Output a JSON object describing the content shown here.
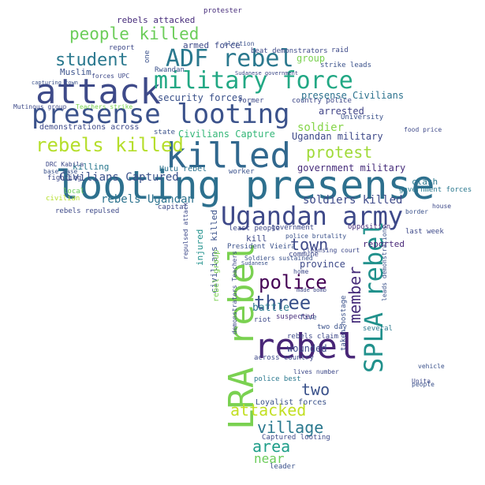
{
  "wordcloud": {
    "words": [
      {
        "text": "looting presense",
        "color": "#2d708e"
      },
      {
        "text": "presense looting",
        "color": "#3b528b"
      },
      {
        "text": "attack",
        "color": "#3e4a89"
      },
      {
        "text": "Ugandan army",
        "color": "#3e4989"
      },
      {
        "text": "killed",
        "color": "#31688e"
      },
      {
        "text": "military force",
        "color": "#22a884"
      },
      {
        "text": "ADF rebel",
        "color": "#2a788e"
      },
      {
        "text": "rebel",
        "color": "#482677"
      },
      {
        "text": "LRA rebel",
        "color": "#7ad151"
      },
      {
        "text": "SPLA rebel",
        "color": "#21918c"
      },
      {
        "text": "rebels killed",
        "color": "#b5de2b"
      },
      {
        "text": "people killed",
        "color": "#6ccd5a"
      },
      {
        "text": "student",
        "color": "#2a788e"
      },
      {
        "text": "police",
        "color": "#440154"
      },
      {
        "text": "three",
        "color": "#3b528b"
      },
      {
        "text": "town",
        "color": "#3e4a89"
      },
      {
        "text": "member",
        "color": "#472d7b"
      },
      {
        "text": "protest",
        "color": "#a0da39"
      },
      {
        "text": "attacked",
        "color": "#c2df23"
      },
      {
        "text": "village",
        "color": "#2a788e"
      },
      {
        "text": "area",
        "color": "#1f9e89"
      },
      {
        "text": "two",
        "color": "#3b528b"
      },
      {
        "text": "near",
        "color": "#6ccd5a"
      },
      {
        "text": "Civilians Captured",
        "color": "#3b528b"
      },
      {
        "text": "soldiers killed",
        "color": "#3e4a89"
      },
      {
        "text": "rebels Ugandan",
        "color": "#2c728e"
      },
      {
        "text": "soldier",
        "color": "#86d549"
      },
      {
        "text": "security forces",
        "color": "#3b528b"
      },
      {
        "text": "presense Civilians",
        "color": "#2c728e"
      },
      {
        "text": "Civilians Capture",
        "color": "#35b779"
      },
      {
        "text": "Ugandan military",
        "color": "#3e4989"
      },
      {
        "text": "government military",
        "color": "#472d7b"
      },
      {
        "text": "arrested",
        "color": "#414487"
      },
      {
        "text": "armed force",
        "color": "#3e4a89"
      },
      {
        "text": "group",
        "color": "#7ad151"
      },
      {
        "text": "battle",
        "color": "#2a788e"
      },
      {
        "text": "wounded",
        "color": "#3e4989"
      },
      {
        "text": "clash",
        "color": "#2a788e"
      },
      {
        "text": "rebels attacked",
        "color": "#472d7b"
      },
      {
        "text": "Muslim",
        "color": "#3b528b"
      },
      {
        "text": "killing",
        "color": "#2a788e"
      },
      {
        "text": "province",
        "color": "#3e4a89"
      },
      {
        "text": "reported",
        "color": "#482677"
      },
      {
        "text": "injured",
        "color": "#21918c"
      },
      {
        "text": "civilians killed",
        "color": "#3b528b"
      },
      {
        "text": "kill",
        "color": "#3e4989"
      },
      {
        "text": "demonstrations across",
        "color": "#3e4a89"
      },
      {
        "text": "government forces",
        "color": "#2a788e"
      },
      {
        "text": "Loyalist forces",
        "color": "#3b528b"
      },
      {
        "text": "Hutu rebel",
        "color": "#2c728e"
      },
      {
        "text": "fighting",
        "color": "#3e4a89"
      },
      {
        "text": "last week",
        "color": "#3e4989"
      },
      {
        "text": "opposition",
        "color": "#472d7b"
      },
      {
        "text": "across country",
        "color": "#3e4989"
      },
      {
        "text": "police best",
        "color": "#2a788e"
      },
      {
        "text": "rebels repulsed",
        "color": "#3e4a89"
      },
      {
        "text": "taken hostage",
        "color": "#3b528b"
      },
      {
        "text": "several",
        "color": "#2a788e"
      },
      {
        "text": "Unita",
        "color": "#3e4989"
      },
      {
        "text": "border",
        "color": "#3b528b"
      },
      {
        "text": "capital",
        "color": "#3e4a89"
      },
      {
        "text": "state",
        "color": "#3b528b"
      },
      {
        "text": "former",
        "color": "#3e4a89"
      },
      {
        "text": "country police",
        "color": "#3e4989"
      },
      {
        "text": "University",
        "color": "#3b528b"
      },
      {
        "text": "protester",
        "color": "#472d7b"
      },
      {
        "text": "beat demonstrators",
        "color": "#3e4a89"
      },
      {
        "text": "strike leads",
        "color": "#3b528b"
      },
      {
        "text": "raid",
        "color": "#3e4a89"
      },
      {
        "text": "Rwandan",
        "color": "#3b528b"
      },
      {
        "text": "report",
        "color": "#3e4989"
      },
      {
        "text": "one",
        "color": "#3b528b"
      },
      {
        "text": "DRC Kabila",
        "color": "#3e4a89"
      },
      {
        "text": "base base",
        "color": "#3b528b"
      },
      {
        "text": "local",
        "color": "#6ccd5a"
      },
      {
        "text": "civilian",
        "color": "#b5de2b"
      },
      {
        "text": "Mutinous group",
        "color": "#3e4a89"
      },
      {
        "text": "Teachers strike",
        "color": "#7ad151"
      },
      {
        "text": "President Vieira",
        "color": "#3b528b"
      },
      {
        "text": "riot",
        "color": "#3e4a89"
      },
      {
        "text": "suspected",
        "color": "#472d7b"
      },
      {
        "text": "five",
        "color": "#3b528b"
      },
      {
        "text": "rebels claim",
        "color": "#3e4989"
      },
      {
        "text": "two day",
        "color": "#3b528b"
      },
      {
        "text": "home",
        "color": "#3e4a89"
      },
      {
        "text": "Soldiers sustained",
        "color": "#3b528b"
      },
      {
        "text": "commune",
        "color": "#3e4989"
      },
      {
        "text": "government",
        "color": "#3e4a89"
      },
      {
        "text": "police brutality",
        "color": "#3b528b"
      },
      {
        "text": "least people",
        "color": "#3e4989"
      },
      {
        "text": "worker",
        "color": "#3b528b"
      },
      {
        "text": "repulsed attack",
        "color": "#3e4a89"
      },
      {
        "text": "people",
        "color": "#3b528b"
      },
      {
        "text": "lives number",
        "color": "#3e4989"
      },
      {
        "text": "Captured looting",
        "color": "#3e4a89"
      },
      {
        "text": "leader",
        "color": "#3b528b"
      },
      {
        "text": "house",
        "color": "#3e4a89"
      },
      {
        "text": "vehicle",
        "color": "#3b528b"
      },
      {
        "text": "food price",
        "color": "#3e4989"
      },
      {
        "text": "election",
        "color": "#3b528b"
      },
      {
        "text": "forces UPC",
        "color": "#3e4a89"
      },
      {
        "text": "capturing town",
        "color": "#3b528b"
      },
      {
        "text": "demonstrators Teachers",
        "color": "#3e4989"
      },
      {
        "text": "made bomb",
        "color": "#3e4a89"
      },
      {
        "text": "Sudanese",
        "color": "#3b528b"
      },
      {
        "text": "cleansing court",
        "color": "#3e4989"
      },
      {
        "text": "Sudanese government",
        "color": "#3e4a89"
      },
      {
        "text": "rebel group",
        "color": "#7ad151"
      },
      {
        "text": "leads demonstrations",
        "color": "#3b528b"
      }
    ]
  }
}
